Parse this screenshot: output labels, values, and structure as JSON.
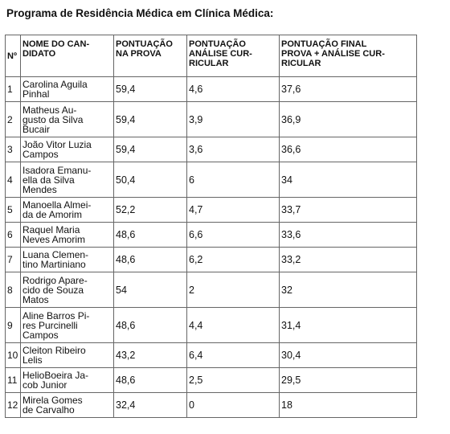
{
  "document": {
    "title": "Programa de Residência Médica em Clínica Médica:"
  },
  "table": {
    "headers": {
      "num": "Nº",
      "name": "NOME DO CAN-\nDIDATO",
      "prova": "PONTUAÇÃO\nNA PROVA",
      "analise": "PONTUAÇÃO\nANÁLISE CUR-\nRICULAR",
      "final": "PONTUAÇÃO FINAL\nPROVA + ANÁLISE CUR-\nRICULAR"
    },
    "rows": [
      {
        "num": "1",
        "name": "Carolina Aguila\nPinhal",
        "prova": "59,4",
        "analise": "4,6",
        "final": "37,6"
      },
      {
        "num": "2",
        "name": "Matheus Au-\ngusto da Silva\nBucair",
        "prova": "59,4",
        "analise": "3,9",
        "final": "36,9"
      },
      {
        "num": "3",
        "name": "João Vitor Luzia\nCampos",
        "prova": "59,4",
        "analise": "3,6",
        "final": "36,6"
      },
      {
        "num": "4",
        "name": "Isadora Emanu-\nella da Silva\nMendes",
        "prova": "50,4",
        "analise": "6",
        "final": "34"
      },
      {
        "num": "5",
        "name": "Manoella Almei-\nda de Amorim",
        "prova": "52,2",
        "analise": "4,7",
        "final": "33,7"
      },
      {
        "num": "6",
        "name": "Raquel Maria\nNeves Amorim",
        "prova": "48,6",
        "analise": "6,6",
        "final": "33,6"
      },
      {
        "num": "7",
        "name": "Luana Clemen-\ntino Martiniano",
        "prova": "48,6",
        "analise": "6,2",
        "final": "33,2"
      },
      {
        "num": "8",
        "name": "Rodrigo Apare-\ncido de Souza\nMatos",
        "prova": "54",
        "analise": "2",
        "final": "32"
      },
      {
        "num": "9",
        "name": "Aline Barros Pi-\nres Purcinelli\nCampos",
        "prova": "48,6",
        "analise": "4,4",
        "final": "31,4"
      },
      {
        "num": "10",
        "name": "Cleiton Ribeiro\nLelis",
        "prova": "43,2",
        "analise": "6,4",
        "final": "30,4"
      },
      {
        "num": "11",
        "name": "HelioBoeira Ja-\ncob Junior",
        "prova": "48,6",
        "analise": "2,5",
        "final": "29,5"
      },
      {
        "num": "12",
        "name": "Mirela Gomes\nde Carvalho",
        "prova": "32,4",
        "analise": "0",
        "final": "18"
      }
    ]
  }
}
